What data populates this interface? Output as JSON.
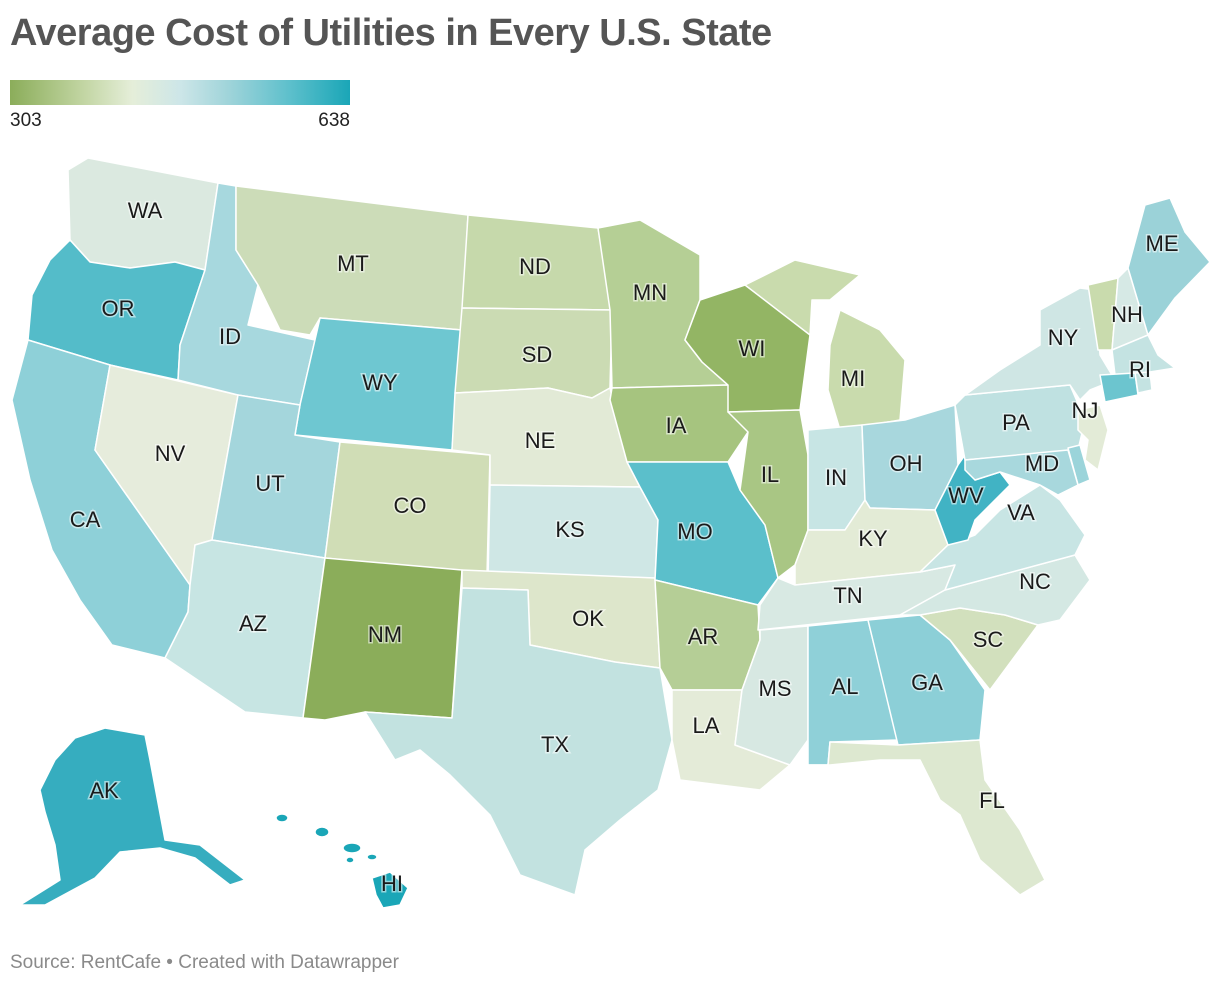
{
  "title": "Average Cost of Utilities in Every U.S. State",
  "legend": {
    "min": "303",
    "max": "638"
  },
  "source": "Source: RentCafe • Created with Datawrapper",
  "colors": {
    "WA": "#dbe9e0",
    "OR": "#54bcc9",
    "CA": "#8ed0d8",
    "NV": "#e6ecdc",
    "ID": "#a7d8de",
    "MT": "#ccdcb8",
    "WY": "#6ec7d1",
    "UT": "#a4d6dc",
    "AZ": "#c7e5e3",
    "CO": "#d0ddb6",
    "NM": "#8bad5a",
    "ND": "#c6d9ab",
    "SD": "#cbdbb3",
    "NE": "#e2ead6",
    "KS": "#cfe7e5",
    "OK": "#dde6cb",
    "TX": "#c2e2e0",
    "MN": "#b5cf95",
    "IA": "#a6c47f",
    "MO": "#5bbfcb",
    "AR": "#b5ce96",
    "LA": "#e4ebd8",
    "WI": "#93b564",
    "IL": "#a9c684",
    "MI": "#c9dbad",
    "IN": "#c7e5e4",
    "OH": "#a8d7dd",
    "KY": "#e3ebd6",
    "TN": "#d8e9e3",
    "MS": "#d7e8e2",
    "AL": "#8fd0d8",
    "GA": "#8ccfd7",
    "FL": "#dde8d0",
    "SC": "#d2e0bd",
    "NC": "#d4e8e3",
    "VA": "#c8e5e4",
    "WV": "#41b3c4",
    "PA": "#bfe1e1",
    "NY": "#cfe6e4",
    "VT": "#c9dbad",
    "NH": "#d6e9e5",
    "ME": "#9bd2d8",
    "MA": "#c4e3e2",
    "RI": "#c4e3e2",
    "CT": "#6cc5cf",
    "NJ": "#e3ebd7",
    "DE": "#9bd4da",
    "MD": "#a8d8dd",
    "AK": "#36adbf",
    "HI": "#1aa6b7"
  },
  "states": [
    {
      "id": "WA",
      "label": "WA"
    },
    {
      "id": "OR",
      "label": "OR"
    },
    {
      "id": "CA",
      "label": "CA"
    },
    {
      "id": "NV",
      "label": "NV"
    },
    {
      "id": "ID",
      "label": "ID"
    },
    {
      "id": "MT",
      "label": "MT"
    },
    {
      "id": "WY",
      "label": "WY"
    },
    {
      "id": "UT",
      "label": "UT"
    },
    {
      "id": "AZ",
      "label": "AZ"
    },
    {
      "id": "CO",
      "label": "CO"
    },
    {
      "id": "NM",
      "label": "NM"
    },
    {
      "id": "ND",
      "label": "ND"
    },
    {
      "id": "SD",
      "label": "SD"
    },
    {
      "id": "NE",
      "label": "NE"
    },
    {
      "id": "KS",
      "label": "KS"
    },
    {
      "id": "OK",
      "label": "OK"
    },
    {
      "id": "TX",
      "label": "TX"
    },
    {
      "id": "MN",
      "label": "MN"
    },
    {
      "id": "IA",
      "label": "IA"
    },
    {
      "id": "MO",
      "label": "MO"
    },
    {
      "id": "AR",
      "label": "AR"
    },
    {
      "id": "LA",
      "label": "LA"
    },
    {
      "id": "WI",
      "label": "WI"
    },
    {
      "id": "IL",
      "label": "IL"
    },
    {
      "id": "MI",
      "label": "MI"
    },
    {
      "id": "IN",
      "label": "IN"
    },
    {
      "id": "OH",
      "label": "OH"
    },
    {
      "id": "KY",
      "label": "KY"
    },
    {
      "id": "TN",
      "label": "TN"
    },
    {
      "id": "MS",
      "label": "MS"
    },
    {
      "id": "AL",
      "label": "AL"
    },
    {
      "id": "GA",
      "label": "GA"
    },
    {
      "id": "FL",
      "label": "FL"
    },
    {
      "id": "SC",
      "label": "SC"
    },
    {
      "id": "NC",
      "label": "NC"
    },
    {
      "id": "VA",
      "label": "VA"
    },
    {
      "id": "WV",
      "label": "WV"
    },
    {
      "id": "PA",
      "label": "PA"
    },
    {
      "id": "NY",
      "label": "NY"
    },
    {
      "id": "NH",
      "label": "NH"
    },
    {
      "id": "ME",
      "label": "ME"
    },
    {
      "id": "RI",
      "label": "RI"
    },
    {
      "id": "NJ",
      "label": "NJ"
    },
    {
      "id": "MD",
      "label": "MD"
    },
    {
      "id": "AK",
      "label": "AK"
    },
    {
      "id": "HI",
      "label": "HI"
    }
  ]
}
